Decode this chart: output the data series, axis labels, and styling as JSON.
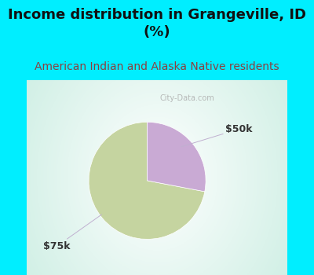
{
  "title": "Income distribution in Grangeville, ID\n(%)",
  "subtitle": "American Indian and Alaska Native residents",
  "slices": [
    {
      "label": "$75k",
      "value": 72,
      "color": "#c5d4a0"
    },
    {
      "label": "$50k",
      "value": 28,
      "color": "#c9aad4"
    }
  ],
  "start_angle": 90,
  "title_fontsize": 13,
  "subtitle_fontsize": 10,
  "title_color": "#111111",
  "subtitle_color": "#8b4040",
  "bg_cyan": "#00eeff",
  "bg_chart_color": "#e0f0e8",
  "watermark": "City-Data.com",
  "label_color": "#333333",
  "label_fontsize": 9,
  "line_color": "#c0b0d0"
}
